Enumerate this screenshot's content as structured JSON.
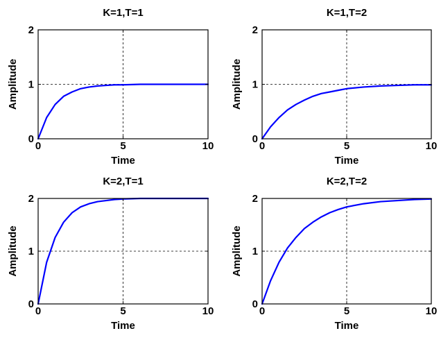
{
  "figure": {
    "background": "#ffffff",
    "curve_color": "#0000ff",
    "grid_color": "#000000"
  },
  "chart_data": [
    {
      "type": "line",
      "title": "K=1,T=1",
      "xlabel": "Time",
      "ylabel": "Amplitude",
      "xlim": [
        0,
        10
      ],
      "ylim": [
        0,
        2
      ],
      "xticks": [
        "0",
        "5",
        "10"
      ],
      "yticks": [
        "0",
        "1",
        "2"
      ],
      "grid": true,
      "x": [
        0,
        0.5,
        1,
        1.5,
        2,
        2.5,
        3,
        3.5,
        4,
        4.5,
        5,
        6,
        7,
        8,
        9,
        10
      ],
      "series": [
        {
          "values": [
            0,
            0.39,
            0.63,
            0.78,
            0.86,
            0.92,
            0.95,
            0.97,
            0.98,
            0.99,
            0.99,
            1.0,
            1.0,
            1.0,
            1.0,
            1.0
          ]
        }
      ]
    },
    {
      "type": "line",
      "title": "K=1,T=2",
      "xlabel": "Time",
      "ylabel": "Amplitude",
      "xlim": [
        0,
        10
      ],
      "ylim": [
        0,
        2
      ],
      "xticks": [
        "0",
        "5",
        "10"
      ],
      "yticks": [
        "0",
        "1",
        "2"
      ],
      "grid": true,
      "x": [
        0,
        0.5,
        1,
        1.5,
        2,
        2.5,
        3,
        3.5,
        4,
        4.5,
        5,
        6,
        7,
        8,
        9,
        10
      ],
      "series": [
        {
          "values": [
            0,
            0.22,
            0.39,
            0.53,
            0.63,
            0.71,
            0.78,
            0.83,
            0.86,
            0.89,
            0.92,
            0.95,
            0.97,
            0.98,
            0.99,
            0.99
          ]
        }
      ]
    },
    {
      "type": "line",
      "title": "K=2,T=1",
      "xlabel": "Time",
      "ylabel": "Amplitude",
      "xlim": [
        0,
        10
      ],
      "ylim": [
        0,
        2
      ],
      "xticks": [
        "0",
        "5",
        "10"
      ],
      "yticks": [
        "0",
        "1",
        "2"
      ],
      "grid": true,
      "x": [
        0,
        0.5,
        1,
        1.5,
        2,
        2.5,
        3,
        3.5,
        4,
        4.5,
        5,
        6,
        7,
        8,
        9,
        10
      ],
      "series": [
        {
          "values": [
            0,
            0.79,
            1.26,
            1.55,
            1.73,
            1.84,
            1.9,
            1.94,
            1.96,
            1.98,
            1.99,
            2.0,
            2.0,
            2.0,
            2.0,
            2.0
          ]
        }
      ]
    },
    {
      "type": "line",
      "title": "K=2,T=2",
      "xlabel": "Time",
      "ylabel": "Amplitude",
      "xlim": [
        0,
        10
      ],
      "ylim": [
        0,
        2
      ],
      "xticks": [
        "0",
        "5",
        "10"
      ],
      "yticks": [
        "0",
        "1",
        "2"
      ],
      "grid": true,
      "x": [
        0,
        0.5,
        1,
        1.5,
        2,
        2.5,
        3,
        3.5,
        4,
        4.5,
        5,
        6,
        7,
        8,
        9,
        10
      ],
      "series": [
        {
          "values": [
            0,
            0.44,
            0.79,
            1.06,
            1.26,
            1.43,
            1.55,
            1.65,
            1.73,
            1.79,
            1.84,
            1.9,
            1.94,
            1.96,
            1.98,
            1.99
          ]
        }
      ]
    }
  ]
}
